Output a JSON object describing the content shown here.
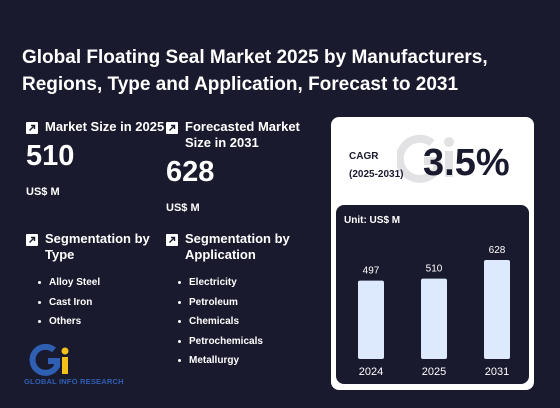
{
  "title": "Global Floating Seal Market 2025 by Manufacturers, Regions, Type and Application, Forecast to 2031",
  "market_size": {
    "label": "Market Size in 2025",
    "value": "510",
    "unit": "US$ M"
  },
  "forecast": {
    "label": "Forecasted Market Size in 2031",
    "value": "628",
    "unit": "US$ M"
  },
  "seg_type": {
    "label": "Segmentation by Type",
    "items": [
      "Alloy Steel",
      "Cast Iron",
      "Others"
    ]
  },
  "seg_app": {
    "label": "Segmentation by Application",
    "items": [
      "Electricity",
      "Petroleum",
      "Chemicals",
      "Petrochemicals",
      "Metallurgy"
    ]
  },
  "cagr": {
    "label_line1": "CAGR",
    "label_line2": "(2025-2031)",
    "value": "3.5%"
  },
  "logo": {
    "text": "GLOBAL INFO RESEARCH"
  },
  "colors": {
    "background": "#1a1a2e",
    "bar": "#ddeafe",
    "logo_blue": "#2f5fb3",
    "logo_yellow": "#f2c21b"
  },
  "chart_data": {
    "type": "bar",
    "unit_label": "Unit: US$ M",
    "categories": [
      "2024",
      "2025",
      "2031"
    ],
    "values": [
      497,
      510,
      628
    ]
  }
}
